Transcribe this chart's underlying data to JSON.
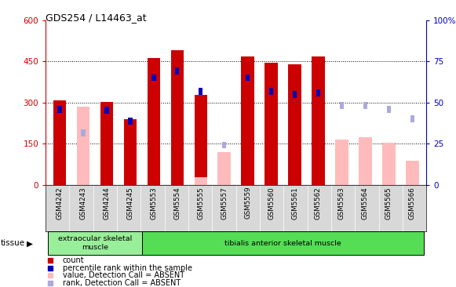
{
  "title": "GDS254 / L14463_at",
  "samples": [
    "GSM4242",
    "GSM4243",
    "GSM4244",
    "GSM4245",
    "GSM5553",
    "GSM5554",
    "GSM5555",
    "GSM5557",
    "GSM5559",
    "GSM5560",
    "GSM5561",
    "GSM5562",
    "GSM5563",
    "GSM5564",
    "GSM5565",
    "GSM5566"
  ],
  "red_bars": [
    308,
    0,
    303,
    240,
    462,
    490,
    328,
    0,
    468,
    445,
    440,
    468,
    0,
    0,
    0,
    0
  ],
  "blue_bars": [
    275,
    0,
    272,
    232,
    390,
    415,
    340,
    0,
    390,
    340,
    328,
    335,
    0,
    0,
    0,
    0
  ],
  "pink_bars": [
    0,
    285,
    0,
    0,
    0,
    0,
    30,
    120,
    0,
    0,
    0,
    0,
    165,
    175,
    155,
    90
  ],
  "light_blue_bars": [
    0,
    190,
    0,
    0,
    0,
    0,
    0,
    145,
    0,
    0,
    0,
    0,
    290,
    290,
    275,
    240
  ],
  "tissue_groups": [
    {
      "label": "extraocular skeletal\nmuscle",
      "start": 0,
      "end": 4,
      "color": "#99ee99"
    },
    {
      "label": "tibialis anterior skeletal muscle",
      "start": 4,
      "end": 16,
      "color": "#55dd55"
    }
  ],
  "ylim_left": [
    0,
    600
  ],
  "ylim_right": [
    0,
    100
  ],
  "yticks_left": [
    0,
    150,
    300,
    450,
    600
  ],
  "yticks_right": [
    0,
    25,
    50,
    75,
    100
  ],
  "y_right_labels": [
    "0",
    "25",
    "50",
    "75",
    "100%"
  ],
  "bar_width": 0.55,
  "blue_bar_width": 0.18,
  "red_color": "#cc0000",
  "blue_color": "#0000bb",
  "pink_color": "#ffbbbb",
  "light_blue_color": "#aaaadd",
  "bg_color": "#ffffff",
  "left_tick_color": "#cc0000",
  "right_tick_color": "#0000bb",
  "gridline_yticks": [
    150,
    300,
    450
  ]
}
